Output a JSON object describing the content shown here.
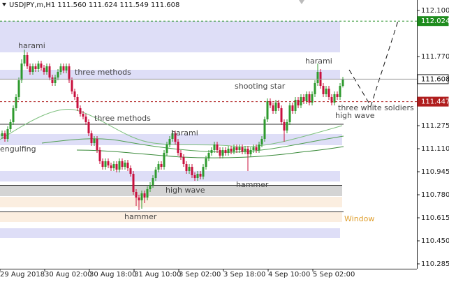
{
  "chart_data": {
    "type": "candlestick",
    "title": "USDJPY,m,H1 111.560 111.624 111.549 111.608",
    "up_color": "#2e9a2e",
    "down_color": "#c8103e",
    "ylim": [
      110.25,
      112.175
    ],
    "yticks": [
      {
        "value": 112.1,
        "label": "112.100"
      },
      {
        "value": 111.77,
        "label": "111.770"
      },
      111.275,
      {
        "value": 111.11,
        "label": "111.110"
      },
      110.945,
      {
        "value": 110.78,
        "label": "110.780"
      },
      110.615,
      {
        "value": 110.45,
        "label": "110.450"
      },
      110.285
    ],
    "price_lines": [
      {
        "value": 112.024,
        "color": "#1e8c1e",
        "style": "dashed"
      },
      {
        "value": 111.608,
        "color": "#9a9a9a",
        "style": "solid"
      },
      {
        "value": 111.447,
        "color": "#b01e1e",
        "style": "dashed"
      }
    ],
    "categories": [
      "29 Aug 2018",
      null,
      null,
      null,
      null,
      null,
      null,
      null,
      null,
      null,
      null,
      null,
      null,
      null,
      null,
      null,
      "30 Aug 02:00",
      null,
      null,
      null,
      null,
      null,
      null,
      null,
      null,
      null,
      null,
      null,
      null,
      null,
      null,
      null,
      "30 Aug 18:00",
      null,
      null,
      null,
      null,
      null,
      null,
      null,
      null,
      null,
      null,
      null,
      null,
      null,
      null,
      null,
      "31 Aug 10:00",
      null,
      null,
      null,
      null,
      null,
      null,
      null,
      null,
      null,
      null,
      null,
      null,
      null,
      null,
      null,
      "3 Sep 02:00",
      null,
      null,
      null,
      null,
      null,
      null,
      null,
      null,
      null,
      null,
      null,
      null,
      null,
      null,
      null,
      "3 Sep 18:00",
      null,
      null,
      null,
      null,
      null,
      null,
      null,
      null,
      null,
      null,
      null,
      null,
      null,
      null,
      null,
      "4 Sep 10:00",
      null,
      null,
      null,
      null,
      null,
      null,
      null,
      null,
      null,
      null,
      null,
      null,
      null,
      null,
      null,
      "5 Sep 02:00",
      null,
      null,
      null,
      null,
      null,
      null,
      null,
      null,
      null,
      null
    ],
    "candles": {
      "open": [
        111.2,
        111.22,
        111.18,
        111.25,
        111.3,
        111.4,
        111.48,
        111.6,
        111.72,
        111.78,
        111.7,
        111.66,
        111.7,
        111.68,
        111.72,
        111.69,
        111.66,
        111.7,
        111.62,
        111.58,
        111.62,
        111.66,
        111.7,
        111.67,
        111.7,
        111.6,
        111.52,
        111.48,
        111.4,
        111.36,
        111.34,
        111.3,
        111.22,
        111.15,
        111.18,
        111.1,
        111.02,
        110.98,
        111.02,
        110.99,
        110.97,
        111.0,
        110.96,
        111.02,
        110.98,
        111.01,
        110.97,
        110.93,
        110.8,
        110.76,
        110.74,
        110.79,
        110.76,
        110.82,
        110.85,
        110.9,
        110.96,
        111.0,
        110.98,
        111.08,
        111.14,
        111.18,
        111.22,
        111.16,
        111.08,
        111.05,
        111.0,
        110.95,
        110.98,
        110.92,
        110.9,
        110.93,
        110.91,
        110.98,
        111.04,
        111.08,
        111.1,
        111.14,
        111.1,
        111.06,
        111.1,
        111.08,
        111.11,
        111.09,
        111.12,
        111.1,
        111.12,
        111.09,
        111.11,
        111.07,
        111.1,
        111.12,
        111.1,
        111.14,
        111.18,
        111.32,
        111.45,
        111.42,
        111.38,
        111.44,
        111.4,
        111.3,
        111.24,
        111.3,
        111.42,
        111.38,
        111.46,
        111.42,
        111.48,
        111.45,
        111.5,
        111.44,
        111.5,
        111.58,
        111.66,
        111.56,
        111.5,
        111.54,
        111.48,
        111.44,
        111.5,
        111.48,
        111.56
      ],
      "high": [
        111.24,
        111.24,
        111.27,
        111.32,
        111.42,
        111.5,
        111.62,
        111.75,
        111.82,
        111.8,
        111.72,
        111.72,
        111.72,
        111.74,
        111.74,
        111.71,
        111.72,
        111.72,
        111.64,
        111.64,
        111.68,
        111.72,
        111.72,
        111.72,
        111.72,
        111.62,
        111.54,
        111.5,
        111.42,
        111.38,
        111.36,
        111.32,
        111.24,
        111.2,
        111.2,
        111.12,
        111.04,
        111.04,
        111.04,
        111.01,
        111.02,
        111.02,
        111.04,
        111.04,
        111.03,
        111.03,
        110.99,
        110.95,
        110.82,
        110.78,
        110.81,
        110.81,
        110.84,
        110.87,
        110.92,
        110.98,
        111.02,
        111.02,
        111.1,
        111.16,
        111.2,
        111.24,
        111.24,
        111.18,
        111.1,
        111.07,
        111.02,
        111.0,
        111.0,
        110.94,
        110.95,
        110.95,
        111.0,
        111.06,
        111.1,
        111.12,
        111.16,
        111.16,
        111.12,
        111.12,
        111.12,
        111.13,
        111.13,
        111.14,
        111.14,
        111.14,
        111.14,
        111.13,
        111.13,
        111.12,
        111.14,
        111.14,
        111.16,
        111.2,
        111.34,
        111.47,
        111.47,
        111.44,
        111.46,
        111.46,
        111.42,
        111.32,
        111.32,
        111.44,
        111.44,
        111.48,
        111.48,
        111.5,
        111.5,
        111.52,
        111.52,
        111.52,
        111.6,
        111.72,
        111.68,
        111.58,
        111.56,
        111.56,
        111.5,
        111.52,
        111.52,
        111.58,
        111.624
      ],
      "low": [
        111.18,
        111.16,
        111.16,
        111.23,
        111.28,
        111.38,
        111.46,
        111.58,
        111.7,
        111.68,
        111.64,
        111.64,
        111.66,
        111.66,
        111.67,
        111.64,
        111.64,
        111.6,
        111.56,
        111.56,
        111.6,
        111.64,
        111.65,
        111.65,
        111.58,
        111.5,
        111.46,
        111.38,
        111.34,
        111.32,
        111.28,
        111.2,
        111.13,
        111.13,
        111.08,
        111.0,
        110.96,
        110.96,
        110.97,
        110.95,
        110.95,
        110.94,
        110.94,
        110.96,
        110.96,
        110.95,
        110.91,
        110.78,
        110.7,
        110.67,
        110.68,
        110.72,
        110.74,
        110.8,
        110.83,
        110.88,
        110.94,
        110.96,
        110.96,
        111.06,
        111.12,
        111.16,
        111.14,
        111.06,
        111.03,
        110.98,
        110.93,
        110.93,
        110.9,
        110.88,
        110.88,
        110.89,
        110.89,
        110.96,
        111.02,
        111.06,
        111.08,
        111.08,
        111.04,
        111.04,
        111.06,
        111.06,
        111.07,
        111.07,
        111.08,
        111.08,
        111.07,
        111.07,
        110.95,
        111.05,
        111.08,
        111.08,
        111.08,
        111.12,
        111.16,
        111.3,
        111.4,
        111.36,
        111.36,
        111.38,
        111.28,
        111.16,
        111.22,
        111.28,
        111.36,
        111.36,
        111.4,
        111.4,
        111.43,
        111.43,
        111.42,
        111.42,
        111.48,
        111.56,
        111.54,
        111.48,
        111.48,
        111.46,
        111.42,
        111.42,
        111.46,
        111.46,
        111.549
      ],
      "close": [
        111.22,
        111.18,
        111.25,
        111.3,
        111.4,
        111.48,
        111.6,
        111.72,
        111.78,
        111.7,
        111.66,
        111.7,
        111.68,
        111.72,
        111.69,
        111.66,
        111.7,
        111.62,
        111.58,
        111.62,
        111.66,
        111.7,
        111.67,
        111.7,
        111.6,
        111.52,
        111.48,
        111.4,
        111.36,
        111.34,
        111.3,
        111.22,
        111.15,
        111.18,
        111.1,
        111.02,
        110.98,
        111.02,
        110.99,
        110.97,
        111.0,
        110.96,
        111.02,
        110.98,
        111.01,
        110.97,
        110.93,
        110.8,
        110.76,
        110.74,
        110.79,
        110.76,
        110.82,
        110.85,
        110.9,
        110.96,
        111.0,
        110.98,
        111.08,
        111.14,
        111.18,
        111.22,
        111.16,
        111.08,
        111.05,
        111.0,
        110.95,
        110.98,
        110.92,
        110.9,
        110.93,
        110.91,
        110.98,
        111.04,
        111.08,
        111.1,
        111.14,
        111.1,
        111.06,
        111.1,
        111.08,
        111.11,
        111.09,
        111.12,
        111.1,
        111.12,
        111.09,
        111.11,
        111.07,
        111.1,
        111.12,
        111.1,
        111.14,
        111.18,
        111.32,
        111.45,
        111.42,
        111.38,
        111.44,
        111.4,
        111.3,
        111.24,
        111.3,
        111.42,
        111.38,
        111.46,
        111.42,
        111.48,
        111.45,
        111.5,
        111.44,
        111.5,
        111.58,
        111.66,
        111.56,
        111.5,
        111.54,
        111.48,
        111.44,
        111.5,
        111.48,
        111.56,
        111.608
      ]
    },
    "annotations": [
      {
        "text": "harami"
      },
      {
        "text": "three methods"
      },
      {
        "text": "three methods"
      },
      {
        "text": "engulfing"
      },
      {
        "text": "harami"
      },
      {
        "text": "high wave"
      },
      {
        "text": "hammer"
      },
      {
        "text": "hammer"
      },
      {
        "text": "shooting star"
      },
      {
        "text": "harami"
      },
      {
        "text": "three white soldiers"
      },
      {
        "text": "high wave"
      },
      {
        "text": "Window",
        "color": "#e0a030"
      }
    ]
  }
}
